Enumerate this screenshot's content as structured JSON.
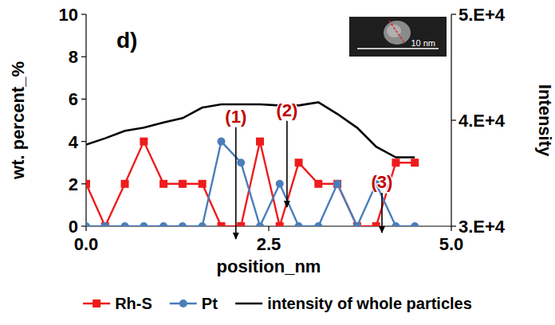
{
  "chart_data": {
    "type": "line",
    "title": "d)",
    "x_label": "position_nm",
    "y_label": "wt. percent_%",
    "y2_label": "Intensity",
    "x": [
      0.0,
      0.26,
      0.53,
      0.79,
      1.06,
      1.32,
      1.59,
      1.85,
      2.12,
      2.38,
      2.65,
      2.91,
      3.18,
      3.44,
      3.71,
      3.97,
      4.24,
      4.5
    ],
    "series": [
      {
        "name": "Rh-S",
        "color": "#ee1c1c",
        "marker": "square",
        "line_style": "solid",
        "values": [
          2,
          0,
          2,
          4,
          2,
          2,
          2,
          0,
          0,
          4,
          0,
          3,
          2,
          2,
          0,
          0,
          3,
          3
        ]
      },
      {
        "name": "Pt",
        "color": "#4a7ebb",
        "marker": "circle",
        "line_style": "solid",
        "values": [
          0,
          0,
          0,
          0,
          0,
          0,
          0,
          4,
          3,
          0,
          2,
          0,
          0,
          2,
          0,
          2,
          0,
          0
        ]
      },
      {
        "name": "intensity of whole particles",
        "color": "#000000",
        "marker": "none",
        "line_style": "solid",
        "axis": "y2",
        "values": [
          37700,
          38300,
          39000,
          39300,
          39800,
          40200,
          41200,
          41500,
          41500,
          41500,
          41400,
          41400,
          41700,
          40600,
          39300,
          37500,
          36500,
          36500
        ]
      }
    ],
    "xlim": [
      0,
      5
    ],
    "xticks": [
      {
        "value": 0,
        "label": "0.0"
      },
      {
        "value": 2.5,
        "label": "2.5"
      },
      {
        "value": 5,
        "label": "5.0"
      }
    ],
    "ylim": [
      0,
      10
    ],
    "yticks": [
      0,
      2,
      4,
      6,
      8,
      10
    ],
    "y2lim": [
      30000,
      50000
    ],
    "y2ticks": [
      {
        "value": 30000,
        "label": "3.E+4"
      },
      {
        "value": 40000,
        "label": "4.E+4"
      },
      {
        "value": 50000,
        "label": "5.E+4"
      }
    ],
    "grid": false,
    "legend": "bottom",
    "annotations": [
      {
        "text": "(1)",
        "x": 2.05,
        "y": -0.6,
        "label_y": 4.9
      },
      {
        "text": "(2)",
        "x": 2.75,
        "y": 0.9,
        "label_y": 5.2
      },
      {
        "text": "(3)",
        "x": 4.05,
        "y": -0.3,
        "label_y": 1.8
      }
    ],
    "inset_scale_label": "10 nm"
  }
}
